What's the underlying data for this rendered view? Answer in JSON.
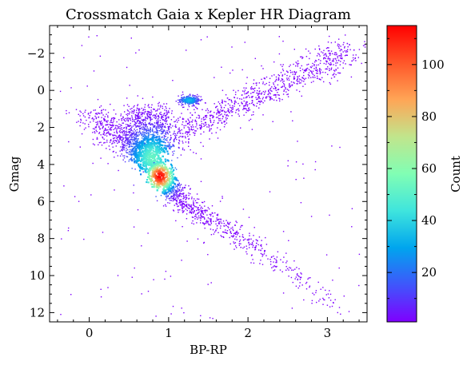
{
  "chart_data": {
    "type": "heatmap",
    "title": "Crossmatch Gaia x Kepler HR Diagram",
    "xlabel": "BP-RP",
    "ylabel": "Gmag",
    "xlim": [
      -0.5,
      3.5
    ],
    "ylim": [
      12.5,
      -3.5
    ],
    "y_inverted": true,
    "x_ticks": [
      0,
      1,
      2,
      3
    ],
    "y_ticks": [
      -2,
      0,
      2,
      4,
      6,
      8,
      10,
      12
    ],
    "colormap": "rainbow",
    "colorbar": {
      "label": "Count",
      "range": [
        1,
        115
      ],
      "ticks": [
        20,
        40,
        60,
        80,
        100
      ]
    },
    "features": [
      {
        "name": "main sequence",
        "from": [
          0.05,
          1.2
        ],
        "via": [
          0.9,
          4.5
        ],
        "to": [
          3.1,
          11.8
        ]
      },
      {
        "name": "red giant branch",
        "from": [
          1.1,
          2.5
        ],
        "to": [
          3.3,
          -2.2
        ]
      },
      {
        "name": "red clump",
        "center": [
          1.25,
          0.5
        ]
      },
      {
        "name": "density peak",
        "center": [
          0.88,
          4.6
        ],
        "value": 115
      }
    ]
  },
  "colors": {
    "colormap_stops": [
      "#7f00ff",
      "#3f56fb",
      "#00a5ee",
      "#3fe5dd",
      "#81feb4",
      "#c1e58c",
      "#ffa556",
      "#ff5629",
      "#ff0000"
    ]
  }
}
